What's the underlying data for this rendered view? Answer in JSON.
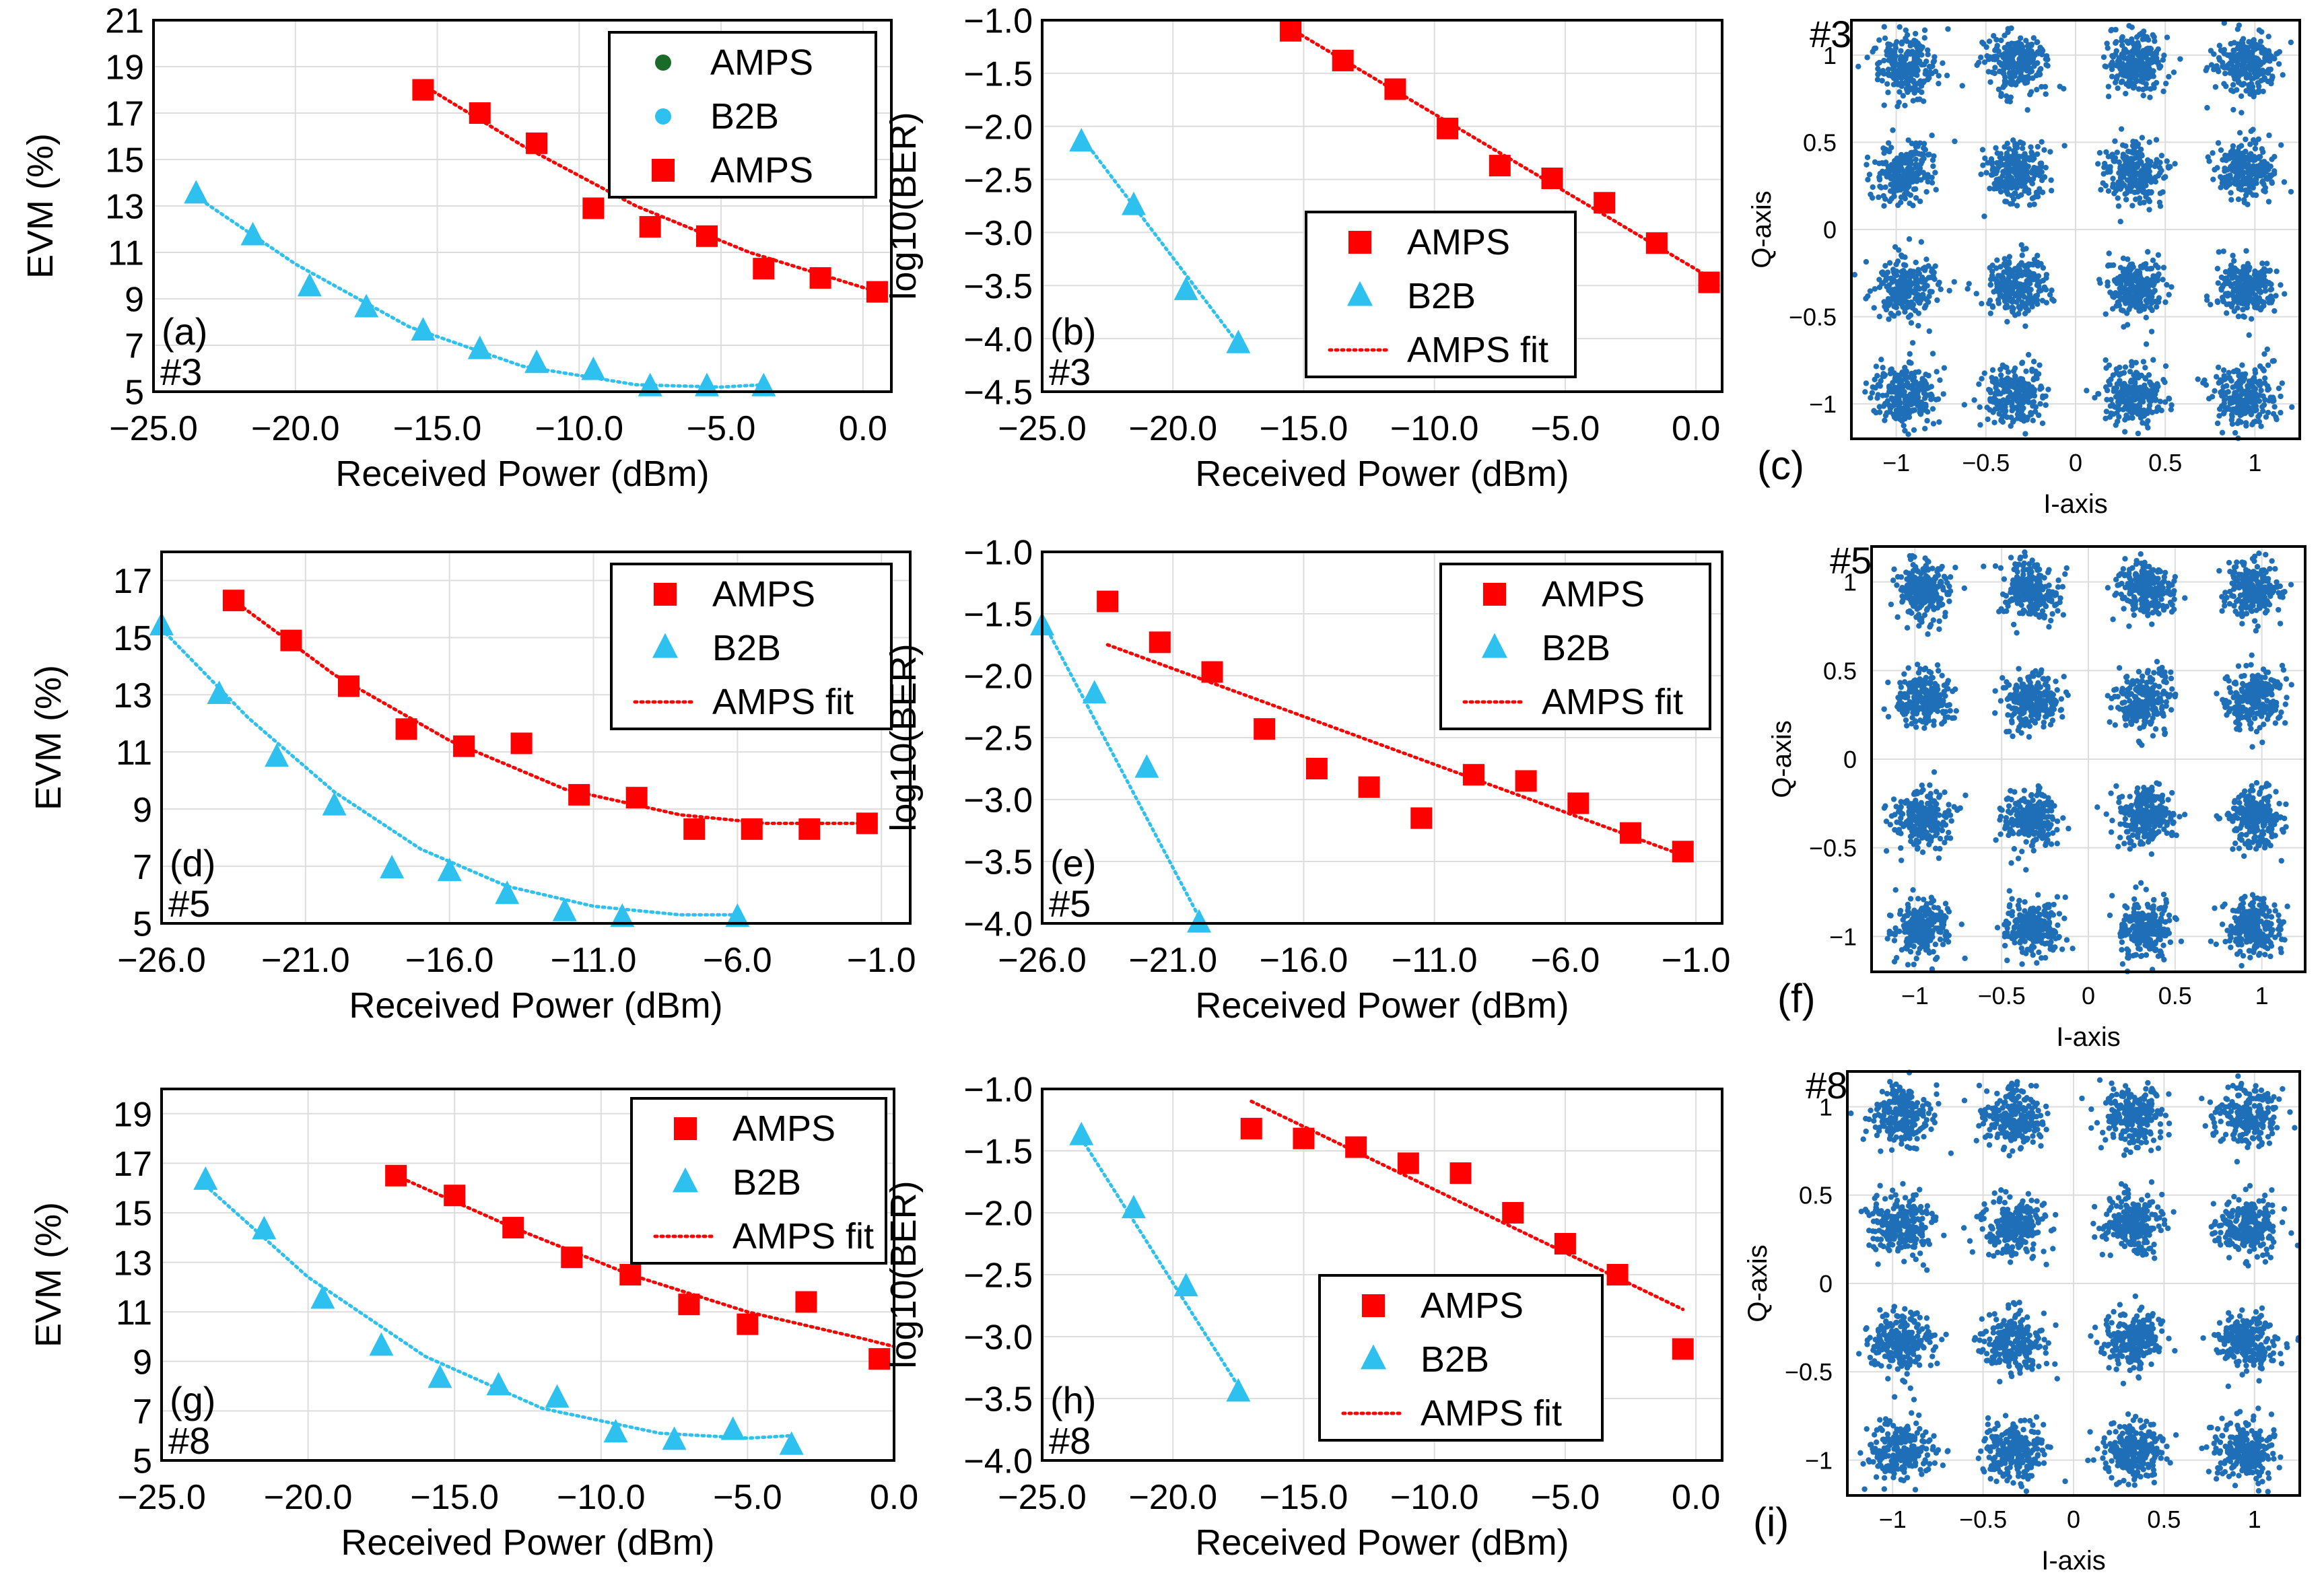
{
  "figure": {
    "title": ""
  },
  "colors": {
    "amps": "#ff0000",
    "b2b": "#2ec0ee",
    "legend_amps_dot": "#1a6b2a",
    "constellation": "#1f6fb8"
  },
  "chart_data": [
    {
      "id": "a",
      "type": "scatter",
      "panel_label": "(a)",
      "tag": "#3",
      "title": "",
      "xlabel": "Received Power (dBm)",
      "ylabel": "EVM (%)",
      "xlim": [
        -25,
        1
      ],
      "ylim": [
        5,
        21
      ],
      "xticks": [
        -25,
        -20,
        -15,
        -10,
        -5,
        0
      ],
      "xtick_labels": [
        "−25.0",
        "−20.0",
        "−15.0",
        "−10.0",
        "−5.0",
        "0.0"
      ],
      "yticks": [
        5,
        7,
        9,
        11,
        13,
        15,
        17,
        19,
        21
      ],
      "ytick_labels": [
        "5",
        "7",
        "9",
        "11",
        "13",
        "15",
        "17",
        "19",
        "21"
      ],
      "legend": [
        "AMPS",
        "B2B",
        "AMPS"
      ],
      "legend_style": [
        "dot-green",
        "dot-blue",
        "square-red"
      ],
      "legend_pos": "top-right",
      "series": [
        {
          "name": "AMPS",
          "marker": "square",
          "color": "#ff0000",
          "x": [
            -15.5,
            -13.5,
            -11.5,
            -9.5,
            -7.5,
            -5.5,
            -3.5,
            -1.5,
            0.5
          ],
          "y": [
            18.0,
            17.0,
            15.7,
            12.9,
            12.1,
            11.7,
            10.3,
            9.9,
            9.3
          ]
        },
        {
          "name": "B2B",
          "marker": "triangle",
          "color": "#2ec0ee",
          "x": [
            -23.5,
            -21.5,
            -19.5,
            -17.5,
            -15.5,
            -13.5,
            -11.5,
            -9.5,
            -7.5,
            -5.5,
            -3.5
          ],
          "y": [
            13.5,
            11.7,
            9.5,
            8.6,
            7.6,
            6.8,
            6.2,
            5.9,
            5.2,
            5.2,
            5.2
          ]
        }
      ],
      "fits": [
        {
          "color": "#ff0000",
          "x": [
            -15.5,
            -12,
            -8,
            -4,
            0.5
          ],
          "y": [
            18.2,
            15.6,
            13.0,
            11.0,
            9.3
          ]
        },
        {
          "color": "#2ec0ee",
          "x": [
            -23.5,
            -20,
            -16,
            -12,
            -8,
            -5,
            -3.5
          ],
          "y": [
            13.4,
            10.5,
            7.8,
            6.1,
            5.3,
            5.2,
            5.3
          ]
        }
      ]
    },
    {
      "id": "b",
      "type": "scatter",
      "panel_label": "(b)",
      "tag": "#3",
      "title": "",
      "xlabel": "Received Power (dBm)",
      "ylabel": "log10(BER)",
      "xlim": [
        -25,
        1
      ],
      "ylim": [
        -4.5,
        -1.0
      ],
      "xticks": [
        -25,
        -20,
        -15,
        -10,
        -5,
        0
      ],
      "xtick_labels": [
        "−25.0",
        "−20.0",
        "−15.0",
        "−10.0",
        "−5.0",
        "0.0"
      ],
      "yticks": [
        -4.5,
        -4.0,
        -3.5,
        -3.0,
        -2.5,
        -2.0,
        -1.5,
        -1.0
      ],
      "ytick_labels": [
        "−4.5",
        "−4.0",
        "−3.5",
        "−3.0",
        "−2.5",
        "−2.0",
        "−1.5",
        "−1.0"
      ],
      "legend": [
        "AMPS",
        "B2B",
        "AMPS fit"
      ],
      "legend_style": [
        "square-red",
        "triangle-blue",
        "line-red"
      ],
      "legend_pos": "bottom-right",
      "series": [
        {
          "name": "AMPS",
          "marker": "square",
          "color": "#ff0000",
          "x": [
            -15.5,
            -13.5,
            -11.5,
            -9.5,
            -7.5,
            -5.5,
            -3.5,
            -1.5,
            0.5
          ],
          "y": [
            -1.1,
            -1.38,
            -1.65,
            -2.02,
            -2.37,
            -2.49,
            -2.72,
            -3.1,
            -3.47
          ]
        },
        {
          "name": "B2B",
          "marker": "triangle",
          "color": "#2ec0ee",
          "x": [
            -23.5,
            -21.5,
            -19.5,
            -17.5
          ],
          "y": [
            -2.15,
            -2.75,
            -3.55,
            -4.05
          ]
        }
      ],
      "fits": [
        {
          "color": "#ff0000",
          "x": [
            -15.5,
            0.5
          ],
          "y": [
            -1.08,
            -3.42
          ]
        },
        {
          "color": "#2ec0ee",
          "x": [
            -23.5,
            -17.5
          ],
          "y": [
            -2.1,
            -4.05
          ]
        }
      ]
    },
    {
      "id": "c",
      "type": "scatter",
      "panel_label": "(c)",
      "tag": "#3",
      "title": "",
      "xlabel": "I-axis",
      "ylabel": "Q-axis",
      "xlim": [
        -1.25,
        1.25
      ],
      "ylim": [
        -1.2,
        1.2
      ],
      "xticks": [
        -1,
        -0.5,
        0,
        0.5,
        1
      ],
      "xtick_labels": [
        "−1",
        "−0.5",
        "0",
        "0.5",
        "1"
      ],
      "yticks": [
        -1,
        -0.5,
        0,
        0.5,
        1
      ],
      "ytick_labels": [
        "−1",
        "−0.5",
        "0",
        "0.5",
        "1"
      ],
      "constellation": "16-QAM",
      "levels": [
        -0.95,
        -0.33,
        0.33,
        0.95
      ],
      "spread": 0.085,
      "seed": 3
    },
    {
      "id": "d",
      "type": "scatter",
      "panel_label": "(d)",
      "tag": "#5",
      "title": "",
      "xlabel": "Received Power (dBm)",
      "ylabel": "EVM (%)",
      "xlim": [
        -26,
        0
      ],
      "ylim": [
        5,
        18
      ],
      "xticks": [
        -26,
        -21,
        -16,
        -11,
        -6,
        -1
      ],
      "xtick_labels": [
        "−26.0",
        "−21.0",
        "−16.0",
        "−11.0",
        "−6.0",
        "−1.0"
      ],
      "yticks": [
        5,
        7,
        9,
        11,
        13,
        15,
        17
      ],
      "ytick_labels": [
        "5",
        "7",
        "9",
        "11",
        "13",
        "15",
        "17"
      ],
      "legend": [
        "AMPS",
        "B2B",
        "AMPS fit"
      ],
      "legend_style": [
        "square-red",
        "triangle-blue",
        "line-red"
      ],
      "legend_pos": "top-right",
      "series": [
        {
          "name": "AMPS",
          "marker": "square",
          "color": "#ff0000",
          "x": [
            -23.5,
            -21.5,
            -19.5,
            -17.5,
            -15.5,
            -13.5,
            -11.5,
            -9.5,
            -7.5,
            -5.5,
            -3.5,
            -1.5
          ],
          "y": [
            16.3,
            14.9,
            13.3,
            11.8,
            11.2,
            11.3,
            9.5,
            9.4,
            8.3,
            8.3,
            8.3,
            8.5
          ]
        },
        {
          "name": "B2B",
          "marker": "triangle",
          "color": "#2ec0ee",
          "x": [
            -26,
            -24,
            -22,
            -20,
            -18,
            -16,
            -14,
            -12,
            -10,
            -6
          ],
          "y": [
            15.4,
            13.0,
            10.8,
            9.1,
            6.9,
            6.8,
            6.0,
            5.4,
            5.2,
            5.2
          ]
        }
      ],
      "fits": [
        {
          "color": "#ff0000",
          "x": [
            -23.5,
            -20,
            -16,
            -12,
            -8,
            -5,
            -1.5
          ],
          "y": [
            16.3,
            13.7,
            11.4,
            9.7,
            8.8,
            8.5,
            8.5
          ]
        },
        {
          "color": "#2ec0ee",
          "x": [
            -26,
            -23,
            -20,
            -17,
            -14,
            -11,
            -8,
            -6
          ],
          "y": [
            15.3,
            12.2,
            9.6,
            7.6,
            6.3,
            5.6,
            5.3,
            5.3
          ]
        }
      ]
    },
    {
      "id": "e",
      "type": "scatter",
      "panel_label": "(e)",
      "tag": "#5",
      "title": "",
      "xlabel": "Received Power (dBm)",
      "ylabel": "log10(BER)",
      "xlim": [
        -26,
        0
      ],
      "ylim": [
        -4.0,
        -1.0
      ],
      "xticks": [
        -26,
        -21,
        -16,
        -11,
        -6,
        -1
      ],
      "xtick_labels": [
        "−26.0",
        "−21.0",
        "−16.0",
        "−11.0",
        "−6.0",
        "−1.0"
      ],
      "yticks": [
        -4.0,
        -3.5,
        -3.0,
        -2.5,
        -2.0,
        -1.5,
        -1.0
      ],
      "ytick_labels": [
        "−4.0",
        "−3.5",
        "−3.0",
        "−2.5",
        "−2.0",
        "−1.5",
        "−1.0"
      ],
      "legend": [
        "AMPS",
        "B2B",
        "AMPS fit"
      ],
      "legend_style": [
        "square-red",
        "triangle-blue",
        "line-red"
      ],
      "legend_pos": "top-right",
      "series": [
        {
          "name": "AMPS",
          "marker": "square",
          "color": "#ff0000",
          "x": [
            -23.5,
            -21.5,
            -19.5,
            -17.5,
            -15.5,
            -13.5,
            -11.5,
            -9.5,
            -7.5,
            -5.5,
            -3.5,
            -1.5
          ],
          "y": [
            -1.4,
            -1.73,
            -1.97,
            -2.43,
            -2.75,
            -2.9,
            -3.15,
            -2.8,
            -2.85,
            -3.03,
            -3.27,
            -3.42
          ]
        },
        {
          "name": "B2B",
          "marker": "triangle",
          "color": "#2ec0ee",
          "x": [
            -26,
            -24,
            -22,
            -20
          ],
          "y": [
            -1.6,
            -2.15,
            -2.75,
            -4.0
          ]
        }
      ],
      "fits": [
        {
          "color": "#ff0000",
          "x": [
            -23.5,
            -1.5
          ],
          "y": [
            -1.75,
            -3.45
          ]
        },
        {
          "color": "#2ec0ee",
          "x": [
            -26,
            -20
          ],
          "y": [
            -1.55,
            -3.95
          ]
        }
      ]
    },
    {
      "id": "f",
      "type": "scatter",
      "panel_label": "(f)",
      "tag": "#5",
      "title": "",
      "xlabel": "I-axis",
      "ylabel": "Q-axis",
      "xlim": [
        -1.25,
        1.25
      ],
      "ylim": [
        -1.2,
        1.2
      ],
      "xticks": [
        -1,
        -0.5,
        0,
        0.5,
        1
      ],
      "xtick_labels": [
        "−1",
        "−0.5",
        "0",
        "0.5",
        "1"
      ],
      "yticks": [
        -1,
        -0.5,
        0,
        0.5,
        1
      ],
      "ytick_labels": [
        "−1",
        "−0.5",
        "0",
        "0.5",
        "1"
      ],
      "constellation": "16-QAM",
      "levels": [
        -0.95,
        -0.33,
        0.33,
        0.95
      ],
      "spread": 0.08,
      "seed": 5
    },
    {
      "id": "g",
      "type": "scatter",
      "panel_label": "(g)",
      "tag": "#8",
      "title": "",
      "xlabel": "Received Power (dBm)",
      "ylabel": "EVM (%)",
      "xlim": [
        -25,
        0
      ],
      "ylim": [
        5,
        20
      ],
      "xticks": [
        -25,
        -20,
        -15,
        -10,
        -5,
        0
      ],
      "xtick_labels": [
        "−25.0",
        "−20.0",
        "−15.0",
        "−10.0",
        "−5.0",
        "0.0"
      ],
      "yticks": [
        5,
        7,
        9,
        11,
        13,
        15,
        17,
        19
      ],
      "ytick_labels": [
        "5",
        "7",
        "9",
        "11",
        "13",
        "15",
        "17",
        "19"
      ],
      "legend": [
        "AMPS",
        "B2B",
        "AMPS fit"
      ],
      "legend_style": [
        "square-red",
        "triangle-blue",
        "line-red"
      ],
      "legend_pos": "top-right",
      "series": [
        {
          "name": "AMPS",
          "marker": "square",
          "color": "#ff0000",
          "x": [
            -17,
            -15,
            -13,
            -11,
            -9,
            -7,
            -5,
            -3,
            -0.5
          ],
          "y": [
            16.5,
            15.7,
            14.4,
            13.2,
            12.5,
            11.3,
            10.5,
            11.4,
            9.1
          ]
        },
        {
          "name": "B2B",
          "marker": "triangle",
          "color": "#2ec0ee",
          "x": [
            -23.5,
            -21.5,
            -19.5,
            -17.5,
            -15.5,
            -13.5,
            -11.5,
            -9.5,
            -7.5,
            -5.5,
            -3.5
          ],
          "y": [
            16.3,
            14.3,
            11.5,
            9.6,
            8.3,
            8.0,
            7.5,
            6.1,
            5.8,
            6.2,
            5.6
          ]
        }
      ],
      "fits": [
        {
          "color": "#ff0000",
          "x": [
            -17,
            -13,
            -9,
            -5,
            -1,
            0
          ],
          "y": [
            16.5,
            14.4,
            12.5,
            11.0,
            9.9,
            9.6
          ]
        },
        {
          "color": "#2ec0ee",
          "x": [
            -23.5,
            -20,
            -16,
            -12,
            -8,
            -5,
            -3.5
          ],
          "y": [
            16.1,
            12.4,
            9.2,
            7.1,
            6.1,
            5.9,
            6.0
          ]
        }
      ]
    },
    {
      "id": "h",
      "type": "scatter",
      "panel_label": "(h)",
      "tag": "#8",
      "title": "",
      "xlabel": "Received Power (dBm)",
      "ylabel": "log10(BER)",
      "xlim": [
        -25,
        1
      ],
      "ylim": [
        -4.0,
        -1.0
      ],
      "xticks": [
        -25,
        -20,
        -15,
        -10,
        -5,
        0
      ],
      "xtick_labels": [
        "−25.0",
        "−20.0",
        "−15.0",
        "−10.0",
        "−5.0",
        "0.0"
      ],
      "yticks": [
        -4.0,
        -3.5,
        -3.0,
        -2.5,
        -2.0,
        -1.5,
        -1.0
      ],
      "ytick_labels": [
        "−4.0",
        "−3.5",
        "−3.0",
        "−2.5",
        "−2.0",
        "−1.5",
        "−1.0"
      ],
      "legend": [
        "AMPS",
        "B2B",
        "AMPS fit"
      ],
      "legend_style": [
        "square-red",
        "triangle-blue",
        "line-red"
      ],
      "legend_pos": "bottom-center",
      "series": [
        {
          "name": "AMPS",
          "marker": "square",
          "color": "#ff0000",
          "x": [
            -17,
            -15,
            -13,
            -11,
            -9,
            -7,
            -5,
            -3,
            -0.5
          ],
          "y": [
            -1.32,
            -1.4,
            -1.47,
            -1.6,
            -1.68,
            -2.0,
            -2.25,
            -2.5,
            -3.1
          ]
        },
        {
          "name": "B2B",
          "marker": "triangle",
          "color": "#2ec0ee",
          "x": [
            -23.5,
            -21.5,
            -19.5,
            -17.5
          ],
          "y": [
            -1.38,
            -1.97,
            -2.6,
            -3.45
          ]
        }
      ],
      "fits": [
        {
          "color": "#ff0000",
          "x": [
            -17,
            -0.5
          ],
          "y": [
            -1.1,
            -2.78
          ]
        },
        {
          "color": "#2ec0ee",
          "x": [
            -23.5,
            -17.5
          ],
          "y": [
            -1.4,
            -3.4
          ]
        }
      ]
    },
    {
      "id": "i",
      "type": "scatter",
      "panel_label": "(i)",
      "tag": "#8",
      "title": "",
      "xlabel": "I-axis",
      "ylabel": "Q-axis",
      "xlim": [
        -1.25,
        1.25
      ],
      "ylim": [
        -1.2,
        1.2
      ],
      "xticks": [
        -1,
        -0.5,
        0,
        0.5,
        1
      ],
      "xtick_labels": [
        "−1",
        "−0.5",
        "0",
        "0.5",
        "1"
      ],
      "yticks": [
        -1,
        -0.5,
        0,
        0.5,
        1
      ],
      "ytick_labels": [
        "−1",
        "−0.5",
        "0",
        "0.5",
        "1"
      ],
      "constellation": "16-QAM",
      "levels": [
        -0.95,
        -0.33,
        0.33,
        0.95
      ],
      "spread": 0.085,
      "seed": 8
    }
  ]
}
